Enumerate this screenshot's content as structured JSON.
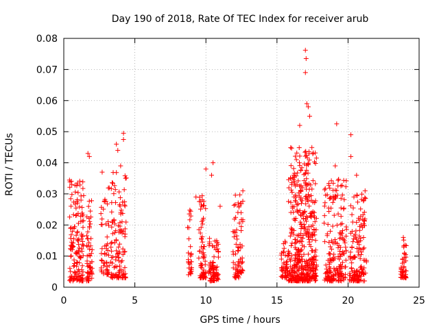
{
  "chart_data": {
    "type": "scatter",
    "title": "Day 190 of 2018, Rate Of TEC Index for receiver arub",
    "xlabel": "GPS time / hours",
    "ylabel": "ROTI / TECUs",
    "xlim": [
      0,
      25
    ],
    "ylim": [
      0,
      0.08
    ],
    "xticks": [
      0,
      5,
      10,
      15,
      20,
      25
    ],
    "xtick_labels": [
      "0",
      "5",
      "10",
      "15",
      "20",
      "25"
    ],
    "yticks": [
      0,
      0.01,
      0.02,
      0.03,
      0.04,
      0.05,
      0.06,
      0.07,
      0.08
    ],
    "ytick_labels": [
      "0",
      "0.01",
      "0.02",
      "0.03",
      "0.04",
      "0.05",
      "0.06",
      "0.07",
      "0.08"
    ],
    "grid": true,
    "marker": "plus",
    "color": "#ff0000",
    "clusters": [
      {
        "x": [
          0.4,
          1.4
        ],
        "ymin": 0.002,
        "ymax": 0.035,
        "density": 150
      },
      {
        "x": [
          1.6,
          2.0
        ],
        "ymin": 0.002,
        "ymax": 0.03,
        "density": 60
      },
      {
        "x": [
          2.6,
          3.2
        ],
        "ymin": 0.004,
        "ymax": 0.032,
        "density": 50
      },
      {
        "x": [
          3.3,
          4.4
        ],
        "ymin": 0.003,
        "ymax": 0.038,
        "density": 120
      },
      {
        "x": [
          8.7,
          9.0
        ],
        "ymin": 0.004,
        "ymax": 0.026,
        "density": 30
      },
      {
        "x": [
          9.5,
          10.0
        ],
        "ymin": 0.003,
        "ymax": 0.03,
        "density": 70
      },
      {
        "x": [
          10.2,
          10.9
        ],
        "ymin": 0.002,
        "ymax": 0.016,
        "density": 80
      },
      {
        "x": [
          11.9,
          12.6
        ],
        "ymin": 0.003,
        "ymax": 0.03,
        "density": 80
      },
      {
        "x": [
          15.3,
          15.8
        ],
        "ymin": 0.003,
        "ymax": 0.016,
        "density": 50
      },
      {
        "x": [
          15.8,
          17.8
        ],
        "ymin": 0.002,
        "ymax": 0.045,
        "density": 450
      },
      {
        "x": [
          18.3,
          19.9
        ],
        "ymin": 0.002,
        "ymax": 0.035,
        "density": 200
      },
      {
        "x": [
          20.1,
          20.6
        ],
        "ymin": 0.002,
        "ymax": 0.03,
        "density": 60
      },
      {
        "x": [
          20.6,
          21.3
        ],
        "ymin": 0.002,
        "ymax": 0.03,
        "density": 90
      },
      {
        "x": [
          23.7,
          24.1
        ],
        "ymin": 0.003,
        "ymax": 0.017,
        "density": 50
      }
    ],
    "outliers": [
      {
        "x": 17.0,
        "y": 0.0762
      },
      {
        "x": 17.05,
        "y": 0.0735
      },
      {
        "x": 17.0,
        "y": 0.069
      },
      {
        "x": 17.1,
        "y": 0.059
      },
      {
        "x": 17.2,
        "y": 0.058
      },
      {
        "x": 17.3,
        "y": 0.055
      },
      {
        "x": 16.6,
        "y": 0.052
      },
      {
        "x": 19.2,
        "y": 0.0525
      },
      {
        "x": 20.2,
        "y": 0.049
      },
      {
        "x": 4.2,
        "y": 0.0495
      },
      {
        "x": 4.2,
        "y": 0.0475
      },
      {
        "x": 3.7,
        "y": 0.046
      },
      {
        "x": 3.8,
        "y": 0.044
      },
      {
        "x": 1.7,
        "y": 0.043
      },
      {
        "x": 1.8,
        "y": 0.042
      },
      {
        "x": 10.5,
        "y": 0.04
      },
      {
        "x": 10.0,
        "y": 0.038
      },
      {
        "x": 10.4,
        "y": 0.036
      },
      {
        "x": 19.1,
        "y": 0.039
      },
      {
        "x": 20.2,
        "y": 0.042
      },
      {
        "x": 20.6,
        "y": 0.036
      },
      {
        "x": 2.7,
        "y": 0.037
      },
      {
        "x": 4.0,
        "y": 0.039
      },
      {
        "x": 12.6,
        "y": 0.031
      },
      {
        "x": 21.2,
        "y": 0.031
      },
      {
        "x": 9.3,
        "y": 0.029
      },
      {
        "x": 11.0,
        "y": 0.026
      }
    ]
  }
}
